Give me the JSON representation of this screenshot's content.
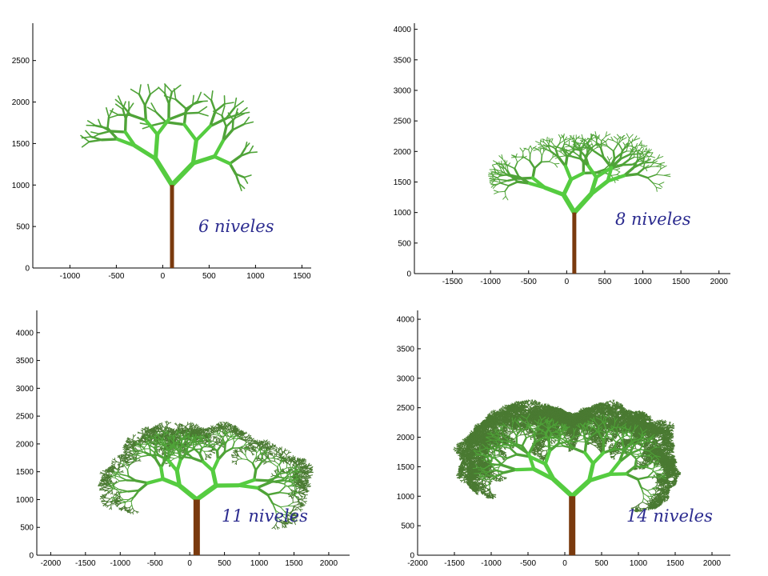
{
  "colors": {
    "trunk": "#7a3a0e",
    "branch_bright": "#55cc40",
    "branch_mid": "#4fa338",
    "branch_dark": "#4a7a32",
    "caption": "#2b2b8f",
    "axis": "#000000",
    "background": "#ffffff"
  },
  "chart_data": [
    {
      "type": "fractal-tree",
      "caption": "6 niveles",
      "levels": 6,
      "trunk": {
        "x": 100,
        "y0": 0,
        "y1": 1000
      },
      "xlim": [
        -1400,
        1600
      ],
      "ylim": [
        0,
        2950
      ],
      "xticks": [
        -1000,
        -500,
        0,
        500,
        1000,
        1500
      ],
      "yticks": [
        0,
        500,
        1000,
        1500,
        2000,
        2500
      ],
      "xlabel": "",
      "ylabel": "",
      "title": ""
    },
    {
      "type": "fractal-tree",
      "caption": "8 niveles",
      "levels": 8,
      "trunk": {
        "x": 100,
        "y0": 0,
        "y1": 1000
      },
      "xlim": [
        -2000,
        2150
      ],
      "ylim": [
        0,
        4100
      ],
      "xticks": [
        -1500,
        -1000,
        -500,
        0,
        500,
        1000,
        1500,
        2000
      ],
      "yticks": [
        0,
        500,
        1000,
        1500,
        2000,
        2500,
        3000,
        3500,
        4000
      ],
      "xlabel": "",
      "ylabel": "",
      "title": ""
    },
    {
      "type": "fractal-tree",
      "caption": "11 niveles",
      "levels": 11,
      "trunk": {
        "x": 100,
        "y0": 0,
        "y1": 1000
      },
      "xlim": [
        -2200,
        2300
      ],
      "ylim": [
        0,
        4400
      ],
      "xticks": [
        -2000,
        -1500,
        -1000,
        -500,
        0,
        500,
        1000,
        1500,
        2000
      ],
      "yticks": [
        0,
        500,
        1000,
        1500,
        2000,
        2500,
        3000,
        3500,
        4000
      ],
      "xlabel": "",
      "ylabel": "",
      "title": ""
    },
    {
      "type": "fractal-tree",
      "caption": "14 niveles",
      "levels": 14,
      "trunk": {
        "x": 100,
        "y0": 0,
        "y1": 1000
      },
      "xlim": [
        -2000,
        2250
      ],
      "ylim": [
        0,
        4150
      ],
      "xticks": [
        -2000,
        -1500,
        -1000,
        -500,
        0,
        500,
        1000,
        1500,
        2000
      ],
      "yticks": [
        0,
        500,
        1000,
        1500,
        2000,
        2500,
        3000,
        3500,
        4000
      ],
      "xlabel": "",
      "ylabel": "",
      "title": ""
    }
  ]
}
